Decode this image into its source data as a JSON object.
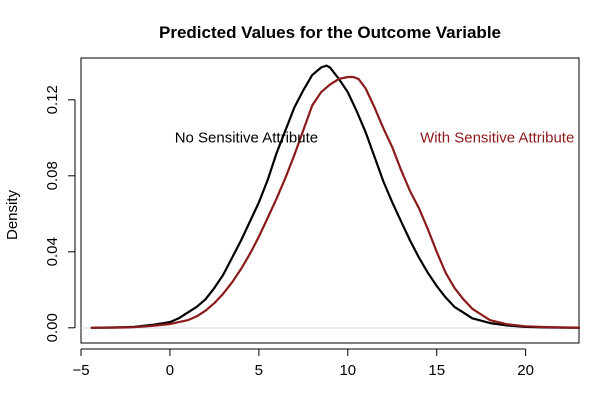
{
  "chart_data": {
    "type": "line",
    "title": "Predicted Values for the Outcome Variable",
    "xlabel": "",
    "ylabel": "Density",
    "xlim": [
      -5,
      23
    ],
    "ylim": [
      -0.008,
      0.142
    ],
    "xticks": [
      -5,
      0,
      5,
      10,
      15,
      20
    ],
    "xtick_labels": [
      "−5",
      "0",
      "5",
      "10",
      "15",
      "20"
    ],
    "yticks": [
      0.0,
      0.04,
      0.08,
      0.12
    ],
    "ytick_labels": [
      "0.00",
      "0.04",
      "0.08",
      "0.12"
    ],
    "grid": false,
    "legend": "none",
    "series": [
      {
        "name": "No Sensitive Attribute",
        "color": "#000000",
        "x": [
          -4.4,
          -3,
          -2,
          -1,
          0,
          0.5,
          1,
          1.5,
          2,
          2.5,
          3,
          3.5,
          4,
          4.5,
          5,
          5.5,
          6,
          6.5,
          7,
          7.5,
          8,
          8.5,
          8.8,
          9,
          9.5,
          10,
          10.5,
          11,
          11.5,
          12,
          12.5,
          13,
          13.5,
          14,
          14.5,
          15,
          15.5,
          16,
          16.5,
          17,
          18,
          19,
          20,
          21,
          22,
          23
        ],
        "y": [
          0.0,
          0.0002,
          0.0005,
          0.0015,
          0.003,
          0.005,
          0.008,
          0.011,
          0.015,
          0.021,
          0.028,
          0.037,
          0.046,
          0.056,
          0.066,
          0.078,
          0.092,
          0.104,
          0.116,
          0.125,
          0.133,
          0.137,
          0.138,
          0.137,
          0.131,
          0.124,
          0.114,
          0.103,
          0.09,
          0.077,
          0.066,
          0.056,
          0.046,
          0.037,
          0.029,
          0.022,
          0.016,
          0.011,
          0.008,
          0.005,
          0.0025,
          0.0012,
          0.0005,
          0.0002,
          0.0001,
          0.0
        ]
      },
      {
        "name": "With Sensitive Attribute",
        "color": "#8B1A1A",
        "x": [
          -4.4,
          -3,
          -2,
          -1,
          0,
          1,
          1.5,
          2,
          2.5,
          3,
          3.5,
          4,
          4.5,
          5,
          5.5,
          6,
          6.5,
          7,
          7.5,
          8,
          8.5,
          9,
          9.5,
          10,
          10.3,
          10.6,
          11,
          11.5,
          12,
          12.5,
          13,
          13.5,
          14,
          14.5,
          15,
          15.5,
          16,
          16.5,
          17,
          17.5,
          18,
          19,
          20,
          21,
          22,
          23
        ],
        "y": [
          0.0,
          0.0001,
          0.0003,
          0.001,
          0.002,
          0.004,
          0.006,
          0.009,
          0.013,
          0.018,
          0.024,
          0.031,
          0.039,
          0.048,
          0.058,
          0.068,
          0.079,
          0.091,
          0.104,
          0.117,
          0.124,
          0.128,
          0.131,
          0.132,
          0.132,
          0.131,
          0.126,
          0.116,
          0.105,
          0.095,
          0.083,
          0.072,
          0.063,
          0.052,
          0.04,
          0.029,
          0.021,
          0.015,
          0.01,
          0.007,
          0.004,
          0.0018,
          0.0008,
          0.0004,
          0.0002,
          0.0001
        ]
      }
    ],
    "annotations": [
      {
        "text": "No Sensitive Attribute",
        "x": 4.3,
        "y": 0.0975,
        "color": "#000000",
        "anchor": "middle"
      },
      {
        "text": "With Sensitive Attribute",
        "x": 18.4,
        "y": 0.0975,
        "color": "#8B1A1A",
        "anchor": "middle"
      }
    ]
  }
}
